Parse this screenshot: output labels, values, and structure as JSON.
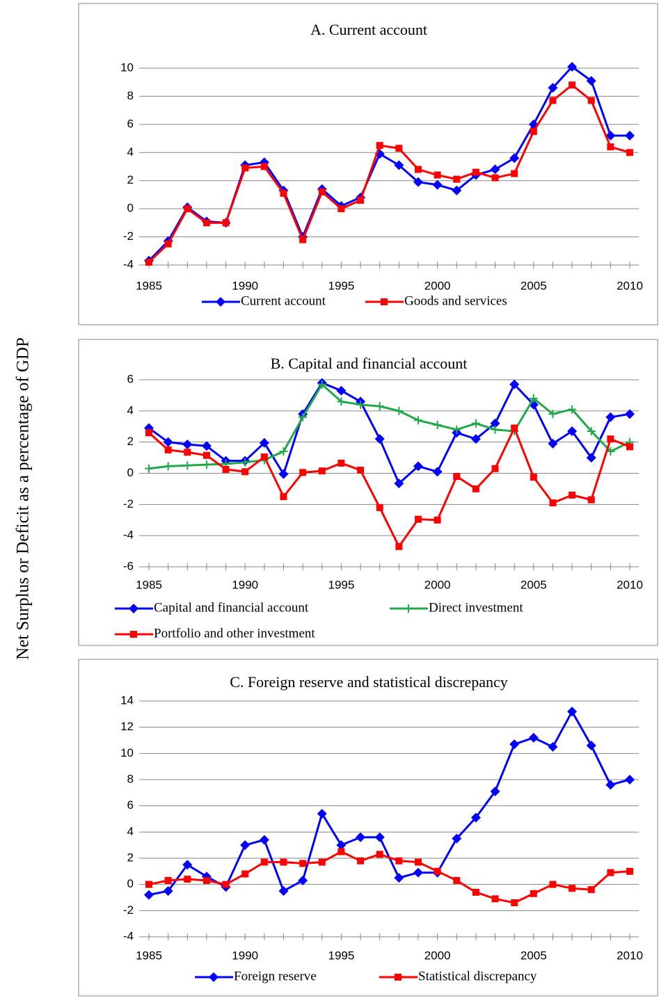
{
  "y_label": "Net Surplus or Deficit as a percentage of GDP",
  "chart_data": [
    {
      "type": "line",
      "title": "A. Current account",
      "x": [
        1985,
        1986,
        1987,
        1988,
        1989,
        1990,
        1991,
        1992,
        1993,
        1994,
        1995,
        1996,
        1997,
        1998,
        1999,
        2000,
        2001,
        2002,
        2003,
        2004,
        2005,
        2006,
        2007,
        2008,
        2009,
        2010
      ],
      "xlim": [
        1985,
        2010
      ],
      "xticks": [
        1985,
        1990,
        1995,
        2000,
        2005,
        2010
      ],
      "ylim": [
        -4,
        10
      ],
      "yticks": [
        -4,
        -2,
        0,
        2,
        4,
        6,
        8,
        10
      ],
      "grid": true,
      "series": [
        {
          "name": "Current account",
          "color": "#0000ff",
          "marker": "diamond",
          "values": [
            -3.7,
            -2.3,
            0.1,
            -0.9,
            -1.0,
            3.1,
            3.3,
            1.3,
            -2.0,
            1.4,
            0.2,
            0.8,
            3.9,
            3.1,
            1.9,
            1.7,
            1.3,
            2.4,
            2.8,
            3.6,
            6.0,
            8.6,
            10.1,
            9.1,
            5.2,
            5.2
          ]
        },
        {
          "name": "Goods and services",
          "color": "#ff0000",
          "marker": "square",
          "values": [
            -3.8,
            -2.5,
            0.0,
            -1.0,
            -1.0,
            2.9,
            3.0,
            1.1,
            -2.2,
            1.2,
            0.0,
            0.6,
            4.5,
            4.3,
            2.8,
            2.4,
            2.1,
            2.6,
            2.2,
            2.5,
            5.5,
            7.7,
            8.8,
            7.7,
            4.4,
            4.0
          ]
        }
      ]
    },
    {
      "type": "line",
      "title": "B. Capital and financial account",
      "x": [
        1985,
        1986,
        1987,
        1988,
        1989,
        1990,
        1991,
        1992,
        1993,
        1994,
        1995,
        1996,
        1997,
        1998,
        1999,
        2000,
        2001,
        2002,
        2003,
        2004,
        2005,
        2006,
        2007,
        2008,
        2009,
        2010
      ],
      "xlim": [
        1985,
        2010
      ],
      "xticks": [
        1985,
        1990,
        1995,
        2000,
        2005,
        2010
      ],
      "ylim": [
        -6,
        6
      ],
      "yticks": [
        -6,
        -4,
        -2,
        0,
        2,
        4,
        6
      ],
      "grid": true,
      "series": [
        {
          "name": "Capital and financial account",
          "color": "#0000ff",
          "marker": "diamond",
          "values": [
            2.9,
            2.0,
            1.85,
            1.75,
            0.8,
            0.8,
            1.95,
            -0.05,
            3.8,
            5.8,
            5.3,
            4.6,
            2.2,
            -0.65,
            0.45,
            0.1,
            2.6,
            2.2,
            3.2,
            5.7,
            4.4,
            1.9,
            2.7,
            1.0,
            3.6,
            3.8
          ]
        },
        {
          "name": "Direct investment",
          "color": "#22a84a",
          "marker": "plus",
          "values": [
            0.3,
            0.45,
            0.5,
            0.55,
            0.6,
            0.7,
            0.85,
            1.4,
            3.6,
            5.7,
            4.6,
            4.4,
            4.3,
            4.0,
            3.4,
            3.1,
            2.8,
            3.2,
            2.8,
            2.7,
            4.8,
            3.8,
            4.1,
            2.7,
            1.4,
            2.0
          ]
        },
        {
          "name": "Portfolio and other investment",
          "color": "#ff0000",
          "marker": "square",
          "values": [
            2.6,
            1.5,
            1.35,
            1.15,
            0.25,
            0.1,
            1.05,
            -1.5,
            0.05,
            0.15,
            0.65,
            0.2,
            -2.2,
            -4.7,
            -2.95,
            -3.0,
            -0.2,
            -1.0,
            0.3,
            2.9,
            -0.25,
            -1.9,
            -1.4,
            -1.7,
            2.2,
            1.7
          ]
        }
      ]
    },
    {
      "type": "line",
      "title": "C. Foreign reserve and statistical discrepancy",
      "x": [
        1985,
        1986,
        1987,
        1988,
        1989,
        1990,
        1991,
        1992,
        1993,
        1994,
        1995,
        1996,
        1997,
        1998,
        1999,
        2000,
        2001,
        2002,
        2003,
        2004,
        2005,
        2006,
        2007,
        2008,
        2009,
        2010
      ],
      "xlim": [
        1985,
        2010
      ],
      "xticks": [
        1985,
        1990,
        1995,
        2000,
        2005,
        2010
      ],
      "ylim": [
        -4,
        14
      ],
      "yticks": [
        -4,
        -2,
        0,
        2,
        4,
        6,
        8,
        10,
        12,
        14
      ],
      "grid": true,
      "series": [
        {
          "name": "Foreign reserve",
          "color": "#0000ff",
          "marker": "diamond",
          "values": [
            -0.8,
            -0.5,
            1.5,
            0.6,
            -0.2,
            3.0,
            3.4,
            -0.5,
            0.3,
            5.4,
            3.0,
            3.6,
            3.6,
            0.5,
            0.9,
            0.9,
            3.5,
            5.1,
            7.1,
            10.7,
            11.2,
            10.5,
            13.2,
            10.6,
            7.6,
            8.0
          ]
        },
        {
          "name": "Statistical discrepancy",
          "color": "#ff0000",
          "marker": "square",
          "values": [
            0.0,
            0.3,
            0.4,
            0.3,
            0.0,
            0.8,
            1.7,
            1.7,
            1.6,
            1.7,
            2.5,
            1.8,
            2.3,
            1.8,
            1.7,
            1.0,
            0.3,
            -0.6,
            -1.1,
            -1.4,
            -0.7,
            0.0,
            -0.3,
            -0.4,
            0.9,
            1.0
          ]
        }
      ]
    }
  ]
}
